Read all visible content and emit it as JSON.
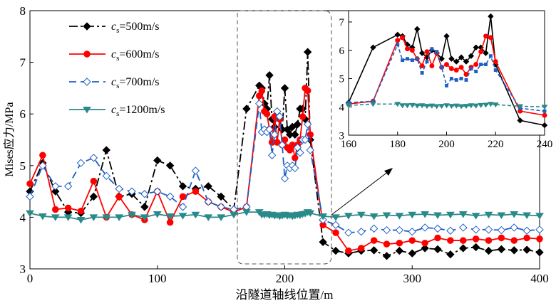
{
  "chart_data": [
    {
      "type": "line",
      "xlabel": "沿隧道轴线位置/m",
      "ylabel": "Mises应力/MPa",
      "xlim": [
        0,
        400
      ],
      "ylim": [
        3,
        8
      ],
      "xticks": [
        0,
        100,
        200,
        300,
        400
      ],
      "yticks": [
        3,
        4,
        5,
        6,
        7,
        8
      ],
      "legend_position": "top-left",
      "series": [
        {
          "name": "cs=500m/s",
          "legend_main": "c",
          "legend_sub": "s",
          "legend_rest": "=500m/s",
          "color": "#000000",
          "dash": "12,4,3,4",
          "marker": "diamond-filled",
          "x": [
            0,
            10,
            20,
            30,
            40,
            50,
            60,
            70,
            80,
            90,
            100,
            110,
            120,
            130,
            140,
            150,
            160,
            170,
            180,
            182,
            184,
            186,
            188,
            190,
            192,
            194,
            196,
            198,
            200,
            202,
            204,
            206,
            208,
            210,
            212,
            214,
            216,
            218,
            220,
            230,
            240,
            250,
            260,
            270,
            280,
            290,
            300,
            310,
            320,
            330,
            340,
            350,
            360,
            370,
            380,
            390,
            400
          ],
          "y": [
            4.5,
            5.05,
            4.5,
            4.1,
            4.08,
            4.4,
            5.3,
            4.4,
            4.45,
            4.2,
            5.1,
            5.0,
            4.6,
            4.55,
            4.6,
            4.4,
            4.15,
            6.1,
            6.55,
            6.5,
            6.2,
            6.1,
            6.75,
            5.9,
            5.75,
            6.0,
            5.9,
            5.7,
            6.5,
            5.7,
            5.6,
            5.75,
            5.6,
            5.8,
            6.1,
            6.1,
            5.9,
            7.2,
            5.5,
            3.52,
            3.35,
            3.3,
            3.35,
            3.36,
            3.25,
            3.35,
            3.3,
            3.4,
            3.38,
            3.28,
            3.4,
            3.42,
            3.35,
            3.38,
            3.36,
            3.37,
            3.32
          ]
        },
        {
          "name": "cs=600m/s",
          "legend_main": "c",
          "legend_sub": "s",
          "legend_rest": "=600m/s",
          "color": "#ff0000",
          "dash": "",
          "marker": "circle-filled",
          "x": [
            0,
            10,
            20,
            30,
            40,
            50,
            60,
            70,
            80,
            90,
            100,
            110,
            120,
            130,
            140,
            150,
            160,
            170,
            180,
            182,
            184,
            186,
            188,
            190,
            192,
            194,
            196,
            198,
            200,
            202,
            204,
            206,
            208,
            210,
            212,
            214,
            216,
            218,
            220,
            230,
            240,
            250,
            260,
            270,
            280,
            290,
            300,
            310,
            320,
            330,
            340,
            350,
            360,
            370,
            380,
            390,
            400
          ],
          "y": [
            4.65,
            5.2,
            4.15,
            4.18,
            4.12,
            4.7,
            4.0,
            4.4,
            4.05,
            3.95,
            4.5,
            3.9,
            4.4,
            4.5,
            4.3,
            4.2,
            4.1,
            4.2,
            6.35,
            6.45,
            6.05,
            6.0,
            5.7,
            5.45,
            5.95,
            5.45,
            5.9,
            5.4,
            5.5,
            5.35,
            5.3,
            5.4,
            5.15,
            5.4,
            5.5,
            5.95,
            6.5,
            6.45,
            5.6,
            3.85,
            3.7,
            3.35,
            3.4,
            3.55,
            3.48,
            3.5,
            3.55,
            3.5,
            3.6,
            3.55,
            3.55,
            3.58,
            3.55,
            3.6,
            3.55,
            3.6,
            3.58
          ]
        },
        {
          "name": "cs=700m/s",
          "legend_main": "c",
          "legend_sub": "s",
          "legend_rest": "=700m/s",
          "color": "#1f5fc4",
          "dash": "10,6",
          "marker": "diamond-open",
          "x": [
            0,
            10,
            20,
            30,
            40,
            50,
            60,
            70,
            80,
            90,
            100,
            110,
            120,
            130,
            140,
            150,
            160,
            170,
            180,
            182,
            184,
            186,
            188,
            190,
            192,
            194,
            196,
            198,
            200,
            202,
            204,
            206,
            208,
            210,
            212,
            214,
            216,
            218,
            220,
            230,
            240,
            250,
            260,
            270,
            280,
            290,
            300,
            310,
            320,
            330,
            340,
            350,
            360,
            370,
            380,
            390,
            400
          ],
          "y": [
            4.4,
            5.0,
            4.6,
            4.6,
            5.05,
            5.15,
            4.8,
            4.55,
            4.5,
            4.45,
            4.5,
            4.4,
            4.2,
            4.9,
            4.3,
            4.2,
            4.15,
            4.2,
            6.2,
            5.65,
            5.7,
            5.65,
            5.7,
            5.2,
            5.6,
            6.05,
            5.95,
            5.4,
            4.75,
            5.0,
            4.95,
            5.0,
            4.95,
            5.35,
            5.25,
            5.5,
            5.5,
            5.8,
            5.3,
            3.95,
            3.85,
            3.7,
            3.72,
            3.78,
            3.75,
            3.75,
            3.72,
            3.8,
            3.78,
            3.74,
            3.8,
            3.76,
            3.76,
            3.75,
            3.8,
            3.74,
            3.76
          ]
        },
        {
          "name": "cs=1200m/s",
          "legend_main": "c",
          "legend_sub": "s",
          "legend_rest": "=1200m/s",
          "color": "#2a8a8a",
          "dash": "",
          "marker": "triangle-down-filled",
          "x": [
            0,
            10,
            20,
            30,
            40,
            50,
            60,
            70,
            80,
            90,
            100,
            110,
            120,
            130,
            140,
            150,
            160,
            170,
            180,
            182,
            184,
            186,
            188,
            190,
            192,
            194,
            196,
            198,
            200,
            202,
            204,
            206,
            208,
            210,
            212,
            214,
            216,
            218,
            220,
            230,
            240,
            250,
            260,
            270,
            280,
            290,
            300,
            310,
            320,
            330,
            340,
            350,
            360,
            370,
            380,
            390,
            400
          ],
          "y": [
            4.08,
            4.02,
            4.0,
            4.0,
            3.95,
            4.0,
            4.0,
            4.0,
            4.05,
            4.0,
            4.06,
            4.02,
            4.03,
            4.05,
            4.0,
            4.0,
            4.05,
            4.1,
            4.1,
            4.05,
            4.05,
            4.06,
            4.04,
            4.05,
            4.03,
            4.04,
            4.02,
            4.03,
            4.05,
            4.03,
            4.04,
            4.02,
            4.03,
            4.05,
            4.04,
            4.06,
            4.07,
            4.1,
            4.08,
            4.02,
            4.0,
            4.03,
            4.05,
            4.02,
            4.04,
            4.03,
            4.05,
            4.06,
            4.04,
            4.05,
            4.06,
            4.03,
            4.05,
            4.04,
            4.06,
            4.04,
            4.03
          ]
        }
      ]
    },
    {
      "type": "line",
      "inset": true,
      "xlim": [
        160,
        240
      ],
      "ylim": [
        3,
        7.4
      ],
      "xticks": [
        160,
        180,
        200,
        220,
        240
      ],
      "yticks": [
        3,
        4,
        5,
        6,
        7
      ],
      "series_ref": "same as main chart, cropped to x in [160, 240]"
    }
  ]
}
